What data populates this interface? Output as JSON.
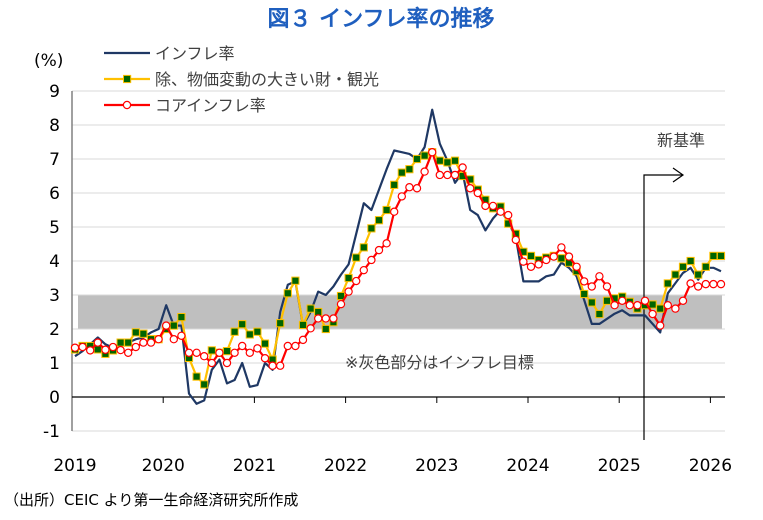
{
  "chart_data": {
    "type": "line",
    "title": "図３ インフレ率の推移",
    "ylabel": "(%)",
    "xlabel": "",
    "ylim": [
      -1,
      9
    ],
    "yticks": [
      -1,
      0,
      1,
      2,
      3,
      4,
      5,
      6,
      7,
      8,
      9
    ],
    "xtick_labels": [
      "2019",
      "2020",
      "2021",
      "2022",
      "2023",
      "2024",
      "2025",
      "2026"
    ],
    "x_start": "2019-01",
    "frequency": "monthly",
    "grid": true,
    "legend_placement": "top-left",
    "target_band": {
      "low": 2,
      "high": 3,
      "label": "※灰色部分はインフレ目標"
    },
    "annotation": {
      "label": "新基準",
      "at_index": 75
    },
    "source": "（出所）CEIC より第一生命経済研究所作成",
    "series": [
      {
        "name": "インフレ率",
        "color": "#1f3864",
        "marker": "none",
        "values": [
          1.2,
          1.35,
          1.55,
          1.75,
          1.55,
          1.45,
          1.5,
          1.6,
          1.7,
          1.75,
          1.9,
          2.0,
          2.7,
          2.1,
          2.1,
          0.1,
          -0.2,
          -0.1,
          0.8,
          1.1,
          0.4,
          0.5,
          1.0,
          0.3,
          0.35,
          1.0,
          0.8,
          2.5,
          3.3,
          3.4,
          2.1,
          2.5,
          3.1,
          3.0,
          3.25,
          3.6,
          3.9,
          4.8,
          5.7,
          5.5,
          6.1,
          6.7,
          7.25,
          7.2,
          7.15,
          7.0,
          7.35,
          8.45,
          7.45,
          6.95,
          6.3,
          6.6,
          5.5,
          5.35,
          4.9,
          5.25,
          5.5,
          5.15,
          4.7,
          3.4,
          3.4,
          3.4,
          3.55,
          3.6,
          3.95,
          3.8,
          3.55,
          2.85,
          2.15,
          2.15,
          2.3,
          2.45,
          2.55,
          2.4,
          2.4,
          2.4,
          2.15,
          1.9,
          3.05,
          3.35,
          3.65,
          3.8,
          3.45,
          3.8,
          3.8,
          3.7
        ]
      },
      {
        "name": "除、物価変動の大きい財・観光",
        "color": "#ffc000",
        "marker": "square",
        "marker_fill": "#006400",
        "values": [
          1.4,
          1.5,
          1.5,
          1.4,
          1.27,
          1.37,
          1.6,
          1.6,
          1.9,
          1.86,
          1.7,
          1.7,
          2.0,
          2.1,
          2.35,
          1.15,
          0.6,
          0.37,
          1.37,
          1.3,
          1.35,
          1.92,
          2.14,
          1.84,
          1.92,
          1.57,
          1.1,
          2.17,
          3.05,
          3.42,
          2.12,
          2.6,
          2.5,
          2.0,
          2.2,
          2.97,
          3.5,
          4.1,
          4.4,
          4.96,
          5.2,
          5.5,
          6.24,
          6.6,
          6.7,
          7.0,
          7.1,
          7.2,
          6.95,
          6.9,
          6.95,
          6.5,
          6.4,
          6.1,
          5.8,
          5.55,
          5.6,
          5.1,
          4.8,
          4.27,
          4.15,
          4.03,
          4.1,
          4.15,
          4.08,
          3.95,
          3.7,
          3.03,
          2.78,
          2.44,
          2.83,
          2.9,
          2.95,
          2.8,
          2.6,
          2.7,
          2.72,
          2.6,
          3.34,
          3.6,
          3.83,
          4.0,
          3.6,
          3.83,
          4.15,
          4.15
        ]
      },
      {
        "name": "コアインフレ率",
        "color": "#ff0000",
        "marker": "circle",
        "marker_fill": "#ffffff",
        "values": [
          1.45,
          1.47,
          1.37,
          1.6,
          1.39,
          1.47,
          1.38,
          1.3,
          1.47,
          1.6,
          1.6,
          1.7,
          2.1,
          1.7,
          1.8,
          1.3,
          1.3,
          1.2,
          1.0,
          1.3,
          1.0,
          1.3,
          1.5,
          1.3,
          1.43,
          1.14,
          0.92,
          0.92,
          1.5,
          1.5,
          1.68,
          2.02,
          2.31,
          2.31,
          2.31,
          2.73,
          3.1,
          3.41,
          3.73,
          4.03,
          4.32,
          4.52,
          5.45,
          5.9,
          6.17,
          6.14,
          6.63,
          7.2,
          6.53,
          6.53,
          6.53,
          6.75,
          6.14,
          6.0,
          5.62,
          5.62,
          5.45,
          5.35,
          4.62,
          3.98,
          3.83,
          3.9,
          4.03,
          4.13,
          4.4,
          4.13,
          3.83,
          3.4,
          3.25,
          3.55,
          3.25,
          2.7,
          2.83,
          2.7,
          2.7,
          2.83,
          2.44,
          2.1,
          2.7,
          2.6,
          2.83,
          3.34,
          3.25,
          3.32,
          3.32,
          3.32
        ]
      }
    ]
  }
}
